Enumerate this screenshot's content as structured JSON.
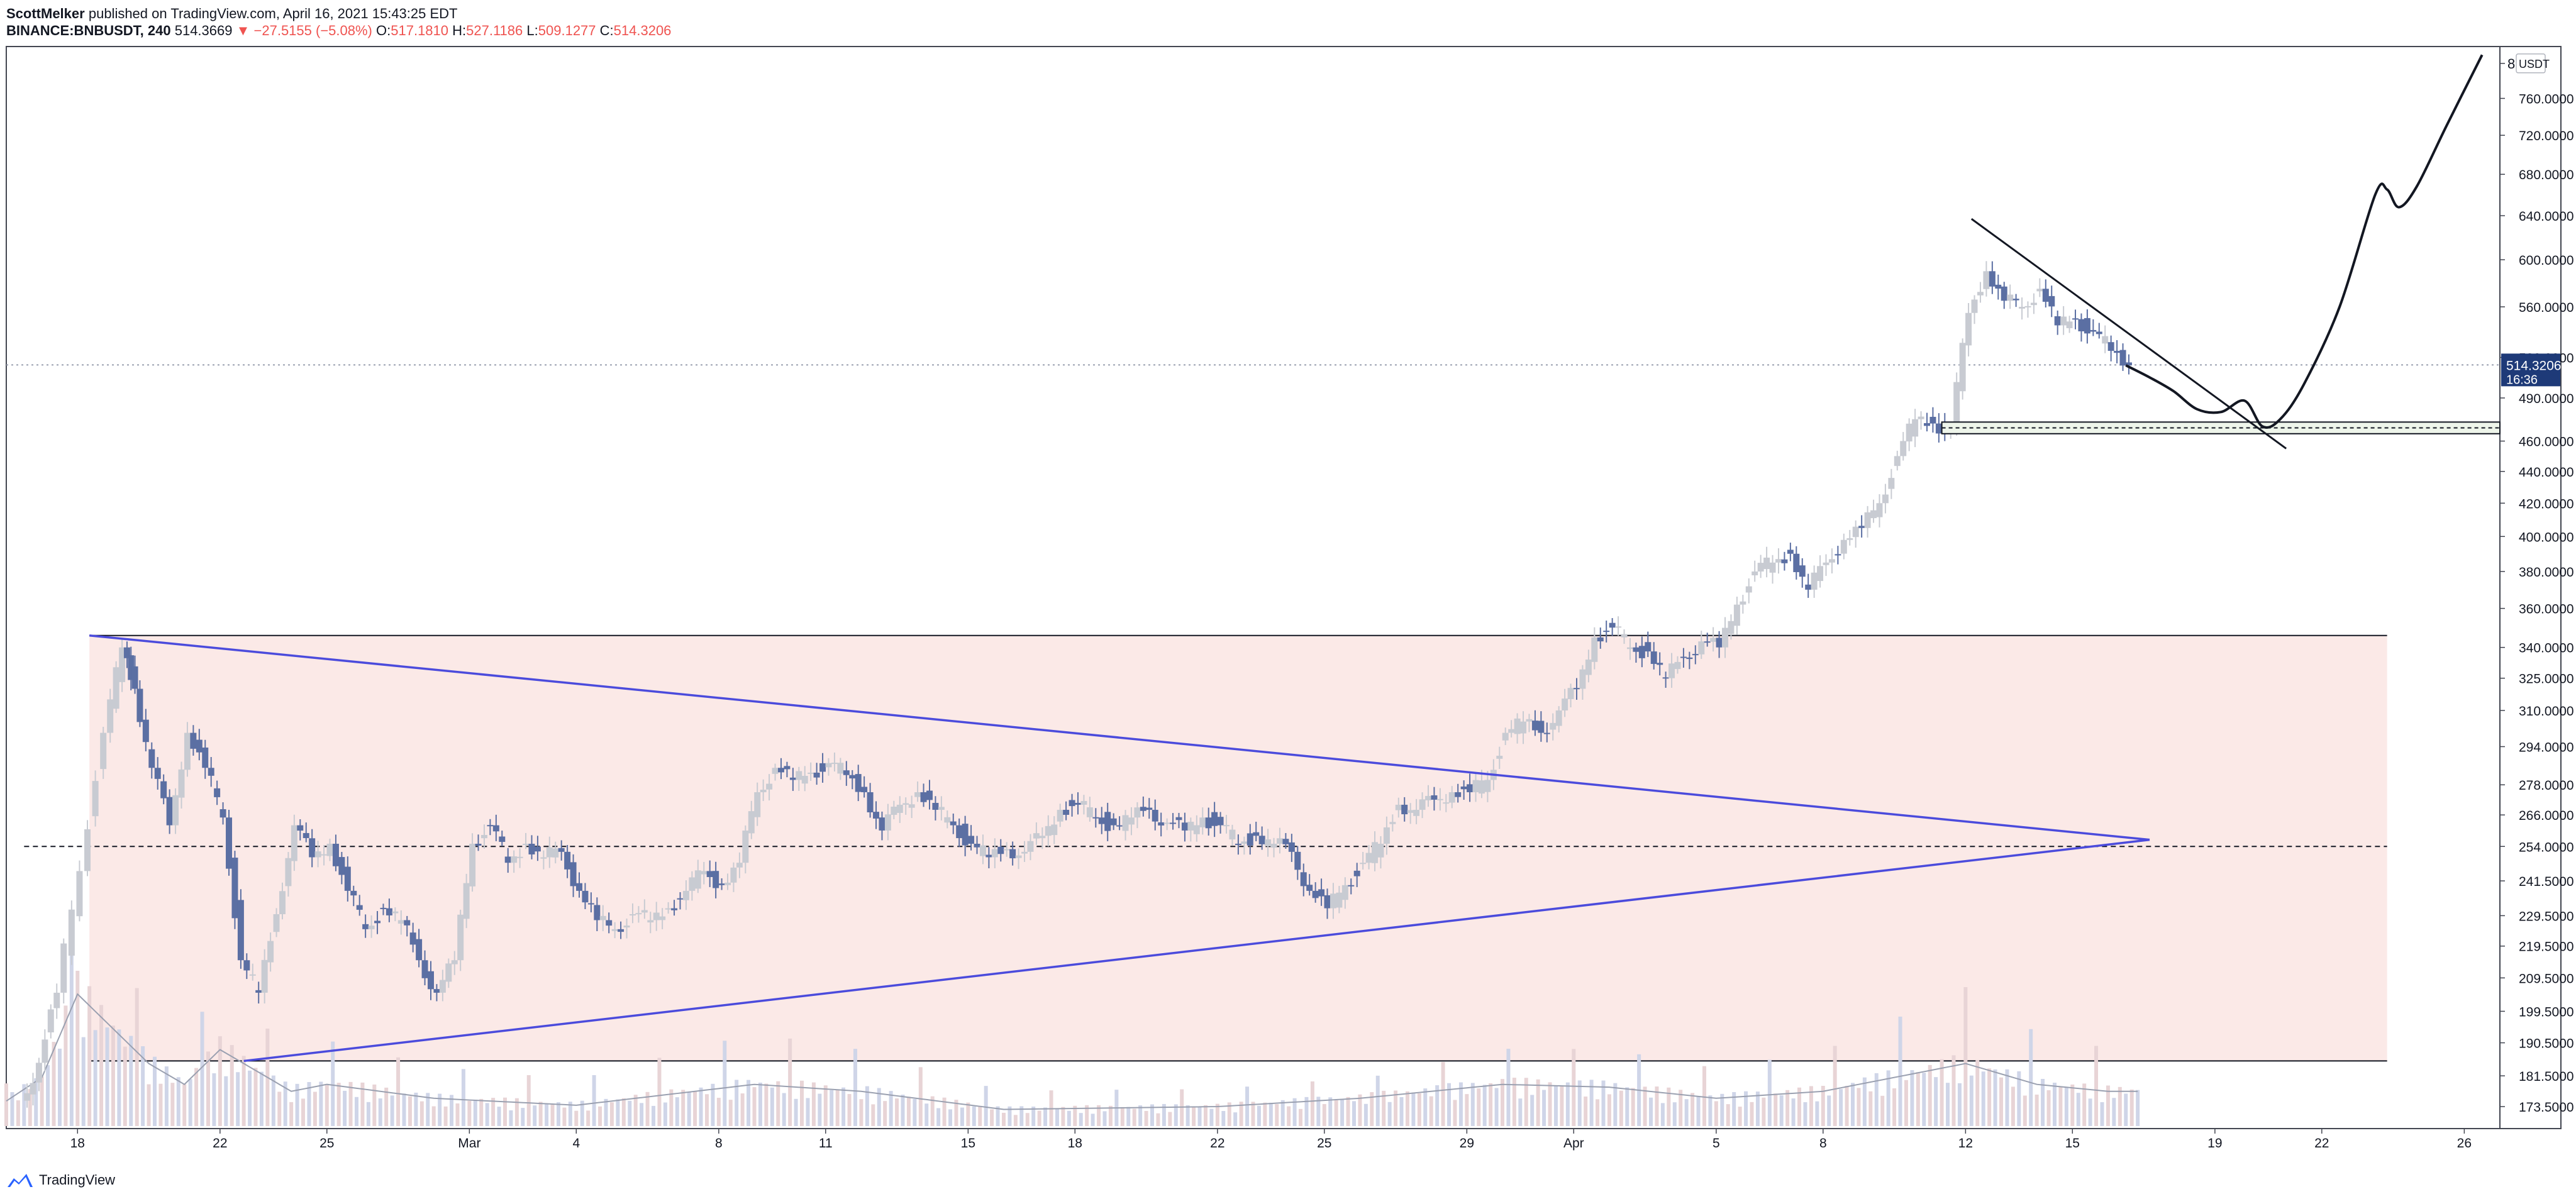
{
  "header": {
    "author": "ScottMelker",
    "published_text": "published on TradingView.com, April 16, 2021 15:43:25 EDT",
    "symbol": "BINANCE:BNBUSDT, 240",
    "last": "514.3669",
    "change": "−27.5155 (−5.08%)",
    "open_label": "O:",
    "open": "517.1810",
    "high_label": "H:",
    "high": "527.1186",
    "low_label": "L:",
    "low": "509.1277",
    "close_label": "C:",
    "close": "514.3206"
  },
  "footer": {
    "brand": "TradingView"
  },
  "colors": {
    "up_candle": "#c8cbd2",
    "down_candle": "#5b6fa3",
    "range_fill": "#fbe9e7",
    "triangle": "#4b4bdc",
    "price_tag": "#1e3a78",
    "volume": "#cfd5e8",
    "volume_ma": "#9aa0b0"
  },
  "chart_data": {
    "type": "candlestick",
    "currency_label": "USDT",
    "y_scale": "log",
    "ylim": [
      168,
      820
    ],
    "x_range": [
      "2021-02-16",
      "2021-04-27"
    ],
    "y_ticks": [
      {
        "v": 800,
        "label": "800.0000"
      },
      {
        "v": 760,
        "label": "760.0000"
      },
      {
        "v": 720,
        "label": "720.0000"
      },
      {
        "v": 680,
        "label": "680.0000"
      },
      {
        "v": 640,
        "label": "640.0000"
      },
      {
        "v": 600,
        "label": "600.0000"
      },
      {
        "v": 560,
        "label": "560.0000"
      },
      {
        "v": 520,
        "label": "520.0000"
      },
      {
        "v": 490,
        "label": "490.0000"
      },
      {
        "v": 460,
        "label": "460.0000"
      },
      {
        "v": 440,
        "label": "440.0000"
      },
      {
        "v": 420,
        "label": "420.0000"
      },
      {
        "v": 400,
        "label": "400.0000"
      },
      {
        "v": 380,
        "label": "380.0000"
      },
      {
        "v": 360,
        "label": "360.0000"
      },
      {
        "v": 340,
        "label": "340.0000"
      },
      {
        "v": 325,
        "label": "325.0000"
      },
      {
        "v": 310,
        "label": "310.0000"
      },
      {
        "v": 294,
        "label": "294.0000"
      },
      {
        "v": 278,
        "label": "278.0000"
      },
      {
        "v": 266,
        "label": "266.0000"
      },
      {
        "v": 254,
        "label": "254.0000"
      },
      {
        "v": 241.5,
        "label": "241.5000"
      },
      {
        "v": 229.5,
        "label": "229.5000"
      },
      {
        "v": 219.5,
        "label": "219.5000"
      },
      {
        "v": 209.5,
        "label": "209.5000"
      },
      {
        "v": 199.5,
        "label": "199.5000"
      },
      {
        "v": 190.5,
        "label": "190.5000"
      },
      {
        "v": 181.5,
        "label": "181.5000"
      },
      {
        "v": 173.5,
        "label": "173.5000"
      }
    ],
    "x_ticks": [
      {
        "date": "2021-02-18",
        "label": "18"
      },
      {
        "date": "2021-02-22",
        "label": "22"
      },
      {
        "date": "2021-02-25",
        "label": "25"
      },
      {
        "date": "2021-03-01",
        "label": "Mar"
      },
      {
        "date": "2021-03-04",
        "label": "4"
      },
      {
        "date": "2021-03-08",
        "label": "8"
      },
      {
        "date": "2021-03-11",
        "label": "11"
      },
      {
        "date": "2021-03-15",
        "label": "15"
      },
      {
        "date": "2021-03-18",
        "label": "18"
      },
      {
        "date": "2021-03-22",
        "label": "22"
      },
      {
        "date": "2021-03-25",
        "label": "25"
      },
      {
        "date": "2021-03-29",
        "label": "29"
      },
      {
        "date": "2021-04-01",
        "label": "Apr"
      },
      {
        "date": "2021-04-05",
        "label": "5"
      },
      {
        "date": "2021-04-08",
        "label": "8"
      },
      {
        "date": "2021-04-12",
        "label": "12"
      },
      {
        "date": "2021-04-15",
        "label": "15"
      },
      {
        "date": "2021-04-19",
        "label": "19"
      },
      {
        "date": "2021-04-22",
        "label": "22"
      },
      {
        "date": "2021-04-26",
        "label": "26"
      }
    ],
    "price_path": [
      [
        "2021-02-16T12:00",
        175
      ],
      [
        "2021-02-17T00:00",
        185
      ],
      [
        "2021-02-17T12:00",
        205
      ],
      [
        "2021-02-18T04:00",
        245
      ],
      [
        "2021-02-18T20:00",
        300
      ],
      [
        "2021-02-19T08:00",
        340
      ],
      [
        "2021-02-19T16:00",
        320
      ],
      [
        "2021-02-20T04:00",
        285
      ],
      [
        "2021-02-20T16:00",
        262
      ],
      [
        "2021-02-21T04:00",
        300
      ],
      [
        "2021-02-21T16:00",
        285
      ],
      [
        "2021-02-22T04:00",
        265
      ],
      [
        "2021-02-22T16:00",
        215
      ],
      [
        "2021-02-23T04:00",
        205
      ],
      [
        "2021-02-23T16:00",
        230
      ],
      [
        "2021-02-24T04:00",
        262
      ],
      [
        "2021-02-24T16:00",
        250
      ],
      [
        "2021-02-25T04:00",
        255
      ],
      [
        "2021-02-25T16:00",
        238
      ],
      [
        "2021-02-26T04:00",
        225
      ],
      [
        "2021-02-26T16:00",
        232
      ],
      [
        "2021-02-27T04:00",
        228
      ],
      [
        "2021-02-27T16:00",
        215
      ],
      [
        "2021-02-28T04:00",
        205
      ],
      [
        "2021-02-28T16:00",
        215
      ],
      [
        "2021-03-01T04:00",
        255
      ],
      [
        "2021-03-01T16:00",
        262
      ],
      [
        "2021-03-02T04:00",
        248
      ],
      [
        "2021-03-02T16:00",
        255
      ],
      [
        "2021-03-03T04:00",
        250
      ],
      [
        "2021-03-03T16:00",
        252
      ],
      [
        "2021-03-04T04:00",
        238
      ],
      [
        "2021-03-04T16:00",
        228
      ],
      [
        "2021-03-05T04:00",
        225
      ],
      [
        "2021-03-05T16:00",
        230
      ],
      [
        "2021-03-06T04:00",
        228
      ],
      [
        "2021-03-06T16:00",
        232
      ],
      [
        "2021-03-07T04:00",
        238
      ],
      [
        "2021-03-07T16:00",
        245
      ],
      [
        "2021-03-08T04:00",
        240
      ],
      [
        "2021-03-08T16:00",
        248
      ],
      [
        "2021-03-09T04:00",
        275
      ],
      [
        "2021-03-09T16:00",
        285
      ],
      [
        "2021-03-10T04:00",
        280
      ],
      [
        "2021-03-10T16:00",
        283
      ],
      [
        "2021-03-11T04:00",
        287
      ],
      [
        "2021-03-11T16:00",
        282
      ],
      [
        "2021-03-12T04:00",
        275
      ],
      [
        "2021-03-12T16:00",
        260
      ],
      [
        "2021-03-13T04:00",
        270
      ],
      [
        "2021-03-13T16:00",
        275
      ],
      [
        "2021-03-14T04:00",
        268
      ],
      [
        "2021-03-14T16:00",
        262
      ],
      [
        "2021-03-15T04:00",
        255
      ],
      [
        "2021-03-15T16:00",
        250
      ],
      [
        "2021-03-16T04:00",
        253
      ],
      [
        "2021-03-16T16:00",
        252
      ],
      [
        "2021-03-17T04:00",
        258
      ],
      [
        "2021-03-17T16:00",
        268
      ],
      [
        "2021-03-18T04:00",
        270
      ],
      [
        "2021-03-18T16:00",
        265
      ],
      [
        "2021-03-19T04:00",
        262
      ],
      [
        "2021-03-19T16:00",
        265
      ],
      [
        "2021-03-20T04:00",
        268
      ],
      [
        "2021-03-20T16:00",
        263
      ],
      [
        "2021-03-21T04:00",
        260
      ],
      [
        "2021-03-21T16:00",
        265
      ],
      [
        "2021-03-22T04:00",
        262
      ],
      [
        "2021-03-22T16:00",
        255
      ],
      [
        "2021-03-23T04:00",
        258
      ],
      [
        "2021-03-23T16:00",
        255
      ],
      [
        "2021-03-24T04:00",
        252
      ],
      [
        "2021-03-24T16:00",
        238
      ],
      [
        "2021-03-25T04:00",
        232
      ],
      [
        "2021-03-25T16:00",
        240
      ],
      [
        "2021-03-26T04:00",
        248
      ],
      [
        "2021-03-26T16:00",
        255
      ],
      [
        "2021-03-27T04:00",
        270
      ],
      [
        "2021-03-27T16:00",
        268
      ],
      [
        "2021-03-28T04:00",
        272
      ],
      [
        "2021-03-28T16:00",
        275
      ],
      [
        "2021-03-29T04:00",
        275
      ],
      [
        "2021-03-29T16:00",
        280
      ],
      [
        "2021-03-30T04:00",
        300
      ],
      [
        "2021-03-30T16:00",
        305
      ],
      [
        "2021-03-31T04:00",
        300
      ],
      [
        "2021-03-31T16:00",
        310
      ],
      [
        "2021-04-01T04:00",
        320
      ],
      [
        "2021-04-01T16:00",
        345
      ],
      [
        "2021-04-02T04:00",
        350
      ],
      [
        "2021-04-02T16:00",
        340
      ],
      [
        "2021-04-03T04:00",
        338
      ],
      [
        "2021-04-03T16:00",
        325
      ],
      [
        "2021-04-04T04:00",
        335
      ],
      [
        "2021-04-04T16:00",
        343
      ],
      [
        "2021-04-05T04:00",
        340
      ],
      [
        "2021-04-05T16:00",
        362
      ],
      [
        "2021-04-06T04:00",
        380
      ],
      [
        "2021-04-06T16:00",
        385
      ],
      [
        "2021-04-07T04:00",
        390
      ],
      [
        "2021-04-07T16:00",
        370
      ],
      [
        "2021-04-08T04:00",
        385
      ],
      [
        "2021-04-08T16:00",
        398
      ],
      [
        "2021-04-09T04:00",
        405
      ],
      [
        "2021-04-09T16:00",
        420
      ],
      [
        "2021-04-10T04:00",
        450
      ],
      [
        "2021-04-10T16:00",
        475
      ],
      [
        "2021-04-11T04:00",
        472
      ],
      [
        "2021-04-11T16:00",
        468
      ],
      [
        "2021-04-12T04:00",
        555
      ],
      [
        "2021-04-12T16:00",
        590
      ],
      [
        "2021-04-13T04:00",
        565
      ],
      [
        "2021-04-13T16:00",
        560
      ],
      [
        "2021-04-14T04:00",
        575
      ],
      [
        "2021-04-14T16:00",
        545
      ],
      [
        "2021-04-15T04:00",
        550
      ],
      [
        "2021-04-15T16:00",
        540
      ],
      [
        "2021-04-16T04:00",
        525
      ],
      [
        "2021-04-16T16:00",
        514
      ]
    ],
    "volume_path": [
      [
        "2021-02-16",
        18
      ],
      [
        "2021-02-17",
        35
      ],
      [
        "2021-02-18",
        95
      ],
      [
        "2021-02-19",
        70
      ],
      [
        "2021-02-20",
        45
      ],
      [
        "2021-02-21",
        30
      ],
      [
        "2021-02-22",
        55
      ],
      [
        "2021-02-23",
        40
      ],
      [
        "2021-02-24",
        25
      ],
      [
        "2021-02-25",
        30
      ],
      [
        "2021-02-28",
        20
      ],
      [
        "2021-03-04",
        15
      ],
      [
        "2021-03-09",
        30
      ],
      [
        "2021-03-12",
        25
      ],
      [
        "2021-03-16",
        12
      ],
      [
        "2021-03-22",
        14
      ],
      [
        "2021-03-26",
        20
      ],
      [
        "2021-03-30",
        30
      ],
      [
        "2021-04-02",
        28
      ],
      [
        "2021-04-05",
        20
      ],
      [
        "2021-04-08",
        25
      ],
      [
        "2021-04-12",
        45
      ],
      [
        "2021-04-14",
        30
      ],
      [
        "2021-04-16",
        25
      ]
    ],
    "annotations": {
      "range_top": 346,
      "range_bottom": 185.5,
      "range_start": "2021-02-18T08:00",
      "range_end": "2021-04-23T20:00",
      "midline": 254,
      "triangle_upper": [
        [
          "2021-02-18T08:00",
          346
        ],
        [
          "2021-04-17T04:00",
          256.5
        ]
      ],
      "triangle_lower": [
        [
          "2021-02-22T16:00",
          185.5
        ],
        [
          "2021-04-17T04:00",
          256.5
        ]
      ],
      "last_price_line": 514.3206,
      "downtrend": [
        [
          "2021-04-12T04:00",
          637
        ],
        [
          "2021-04-21T00:00",
          455
        ]
      ],
      "support_top": 473,
      "support_mid": 469,
      "support_bottom": 465,
      "support_start": "2021-04-11T08:00",
      "projection": [
        [
          "2021-04-16T12:00",
          514
        ],
        [
          "2021-04-17T04:00",
          505
        ],
        [
          "2021-04-17T20:00",
          495
        ],
        [
          "2021-04-18T12:00",
          482
        ],
        [
          "2021-04-19T04:00",
          480
        ],
        [
          "2021-04-19T20:00",
          488
        ],
        [
          "2021-04-20T08:00",
          470
        ],
        [
          "2021-04-20T20:00",
          475
        ],
        [
          "2021-04-21T12:00",
          500
        ],
        [
          "2021-04-22T12:00",
          560
        ],
        [
          "2021-04-23T12:00",
          660
        ],
        [
          "2021-04-23T20:00",
          665
        ],
        [
          "2021-04-24T04:00",
          648
        ],
        [
          "2021-04-24T16:00",
          668
        ],
        [
          "2021-04-25T12:00",
          730
        ],
        [
          "2021-04-26T12:00",
          810
        ]
      ]
    },
    "price_tag": {
      "value": "514.3206",
      "timer": "16:36"
    }
  }
}
